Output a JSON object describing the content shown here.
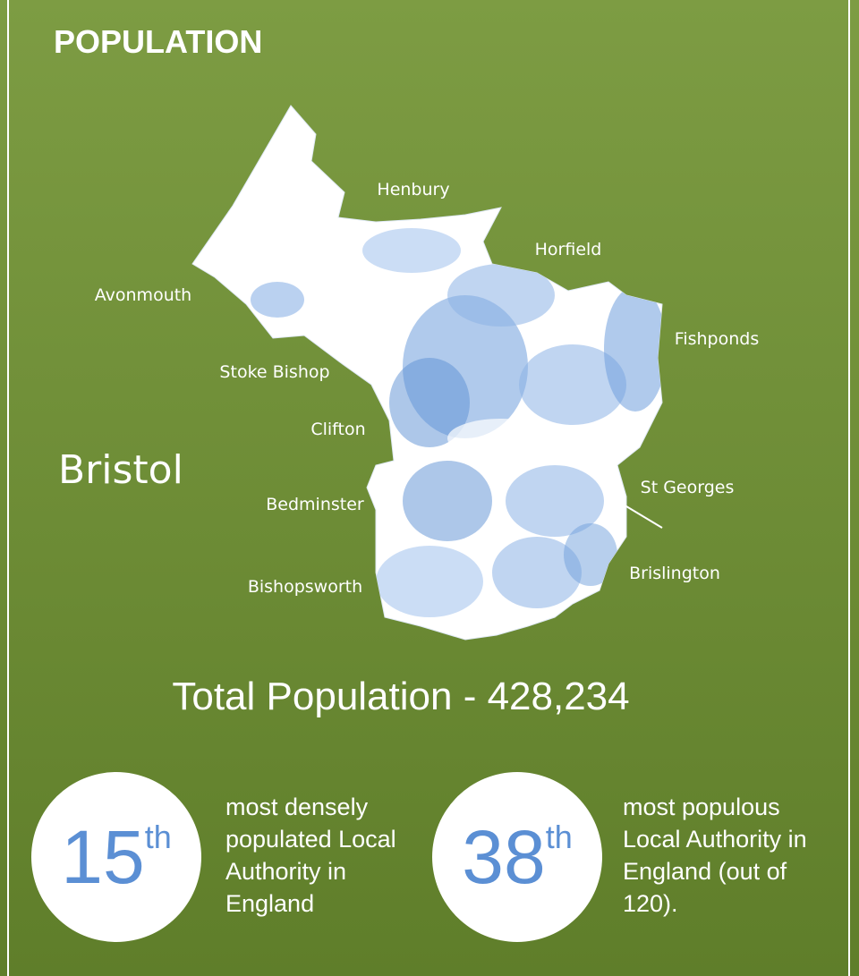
{
  "header": {
    "title": "POPULATION"
  },
  "map": {
    "city": "Bristol",
    "labels": [
      "Henbury",
      "Horfield",
      "Avonmouth",
      "Fishponds",
      "Stoke Bishop",
      "Clifton",
      "St Georges",
      "Bedminster",
      "Brislington",
      "Bishopsworth"
    ]
  },
  "total": "Total Population - 428,234",
  "stats": [
    {
      "rank": 15,
      "suffix": "th",
      "text": "most densely populated Local Authority in England"
    },
    {
      "rank": 38,
      "suffix": "th",
      "text": "most populous Local Authority in England (out of 120)."
    }
  ]
}
